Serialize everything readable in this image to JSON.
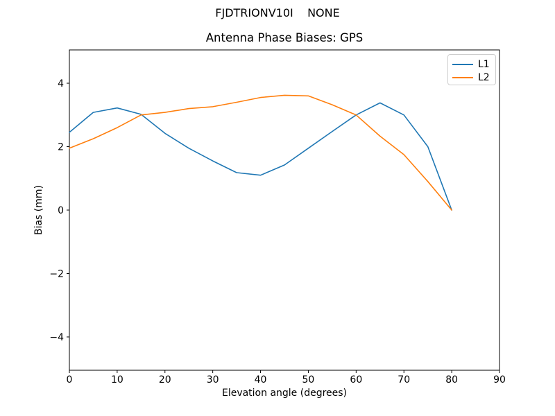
{
  "chart_data": {
    "type": "line",
    "suptitle": "FJDTRIONV10I    NONE",
    "title": "Antenna Phase Biases: GPS",
    "xlabel": "Elevation angle (degrees)",
    "ylabel": "Bias (mm)",
    "xlim": [
      0,
      90
    ],
    "ylim": [
      -5.05,
      5.05
    ],
    "xticks": [
      0,
      10,
      20,
      30,
      40,
      50,
      60,
      70,
      80,
      90
    ],
    "yticks": [
      -4,
      -2,
      0,
      2,
      4
    ],
    "grid": false,
    "legend_position": "upper right",
    "x": [
      0,
      5,
      10,
      15,
      20,
      25,
      30,
      35,
      40,
      45,
      50,
      55,
      60,
      65,
      70,
      75,
      80
    ],
    "series": [
      {
        "name": "L1",
        "color": "#1f77b4",
        "values": [
          2.45,
          3.08,
          3.22,
          3.02,
          2.42,
          1.95,
          1.55,
          1.18,
          1.1,
          1.42,
          1.95,
          2.48,
          3.0,
          3.38,
          3.0,
          2.0,
          0.0
        ]
      },
      {
        "name": "L2",
        "color": "#ff7f0e",
        "values": [
          1.95,
          2.25,
          2.6,
          3.0,
          3.08,
          3.2,
          3.26,
          3.4,
          3.55,
          3.62,
          3.6,
          3.32,
          3.0,
          2.33,
          1.75,
          0.9,
          0.0
        ]
      }
    ]
  }
}
